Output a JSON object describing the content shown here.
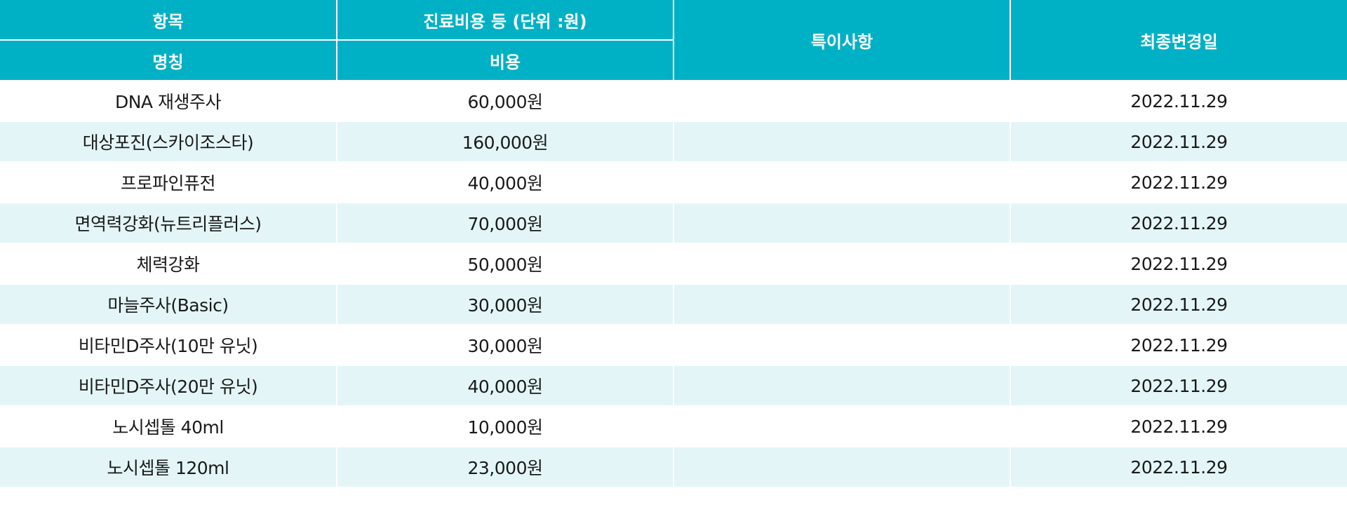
{
  "colors": {
    "header_bg": "#00b1c5",
    "header_text": "#ffffff",
    "row_alt_bg": "#e3f5f7",
    "row_bg": "#ffffff"
  },
  "header": {
    "item": "항목",
    "cost_group": "진료비용 등 (단위 :원)",
    "notes": "특이사항",
    "last_modified": "최종변경일",
    "name": "명칭",
    "cost": "비용"
  },
  "rows": [
    {
      "name": "DNA 재생주사",
      "cost": "60,000원",
      "notes": "",
      "date": "2022.11.29"
    },
    {
      "name": "대상포진(스카이조스타)",
      "cost": "160,000원",
      "notes": "",
      "date": "2022.11.29"
    },
    {
      "name": "프로파인퓨전",
      "cost": "40,000원",
      "notes": "",
      "date": "2022.11.29"
    },
    {
      "name": "면역력강화(뉴트리플러스)",
      "cost": "70,000원",
      "notes": "",
      "date": "2022.11.29"
    },
    {
      "name": "체력강화",
      "cost": "50,000원",
      "notes": "",
      "date": "2022.11.29"
    },
    {
      "name": "마늘주사(Basic)",
      "cost": "30,000원",
      "notes": "",
      "date": "2022.11.29"
    },
    {
      "name": "비타민D주사(10만 유닛)",
      "cost": "30,000원",
      "notes": "",
      "date": "2022.11.29"
    },
    {
      "name": "비타민D주사(20만 유닛)",
      "cost": "40,000원",
      "notes": "",
      "date": "2022.11.29"
    },
    {
      "name": "노시셉톨 40ml",
      "cost": "10,000원",
      "notes": "",
      "date": "2022.11.29"
    },
    {
      "name": "노시셉톨 120ml",
      "cost": "23,000원",
      "notes": "",
      "date": "2022.11.29"
    }
  ]
}
